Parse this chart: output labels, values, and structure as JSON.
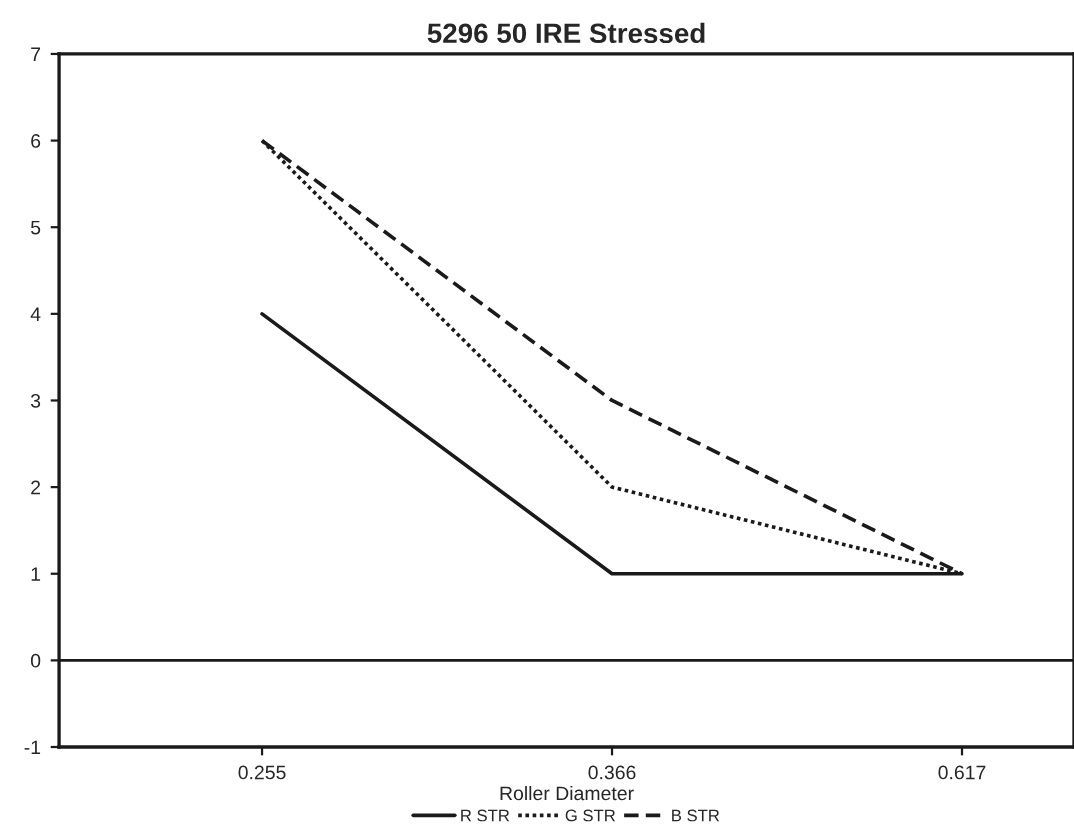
{
  "chart_data": {
    "type": "line",
    "title": "5296 50 IRE Stressed",
    "xlabel": "Roller Diameter",
    "categories": [
      "0.255",
      "0.366",
      "0.617"
    ],
    "series": [
      {
        "name": "R STR",
        "color": "#1a1a1a",
        "values": [
          4,
          1,
          1
        ],
        "line_style": "solid"
      },
      {
        "name": "G STR",
        "color": "#1a1a1a",
        "values": [
          6,
          2,
          1
        ],
        "line_style": "dotted"
      },
      {
        "name": "B STR",
        "color": "#1a1a1a",
        "values": [
          6,
          3,
          1
        ],
        "line_style": "dashed"
      }
    ],
    "ylim": [
      -1,
      7
    ],
    "yticks": [
      -1,
      0,
      1,
      2,
      3,
      4,
      5,
      6,
      7
    ],
    "ref_lines": [
      {
        "axis": "y",
        "value": 0,
        "color": "#1a1a1a"
      }
    ],
    "grid": false,
    "legend": "bottom",
    "marker": "none"
  }
}
